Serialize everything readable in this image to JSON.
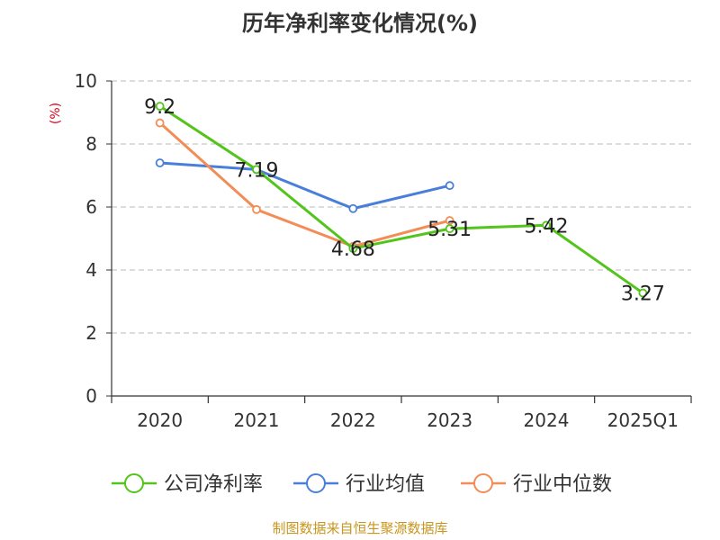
{
  "chart_data": {
    "type": "line",
    "title": "历年净利率变化情况(%)",
    "ylabel": "(%)",
    "xlabel": "",
    "categories": [
      "2020",
      "2021",
      "2022",
      "2023",
      "2024",
      "2025Q1"
    ],
    "ylim": [
      0,
      10
    ],
    "yticks": [
      0,
      2,
      4,
      6,
      8,
      10
    ],
    "grid": true,
    "legend_position": "bottom",
    "series": [
      {
        "name": "公司净利率",
        "color": "#52c41a",
        "values": [
          9.2,
          7.19,
          4.68,
          5.31,
          5.42,
          3.27
        ],
        "labels": [
          "9.2",
          "7.19",
          "4.68",
          "5.31",
          "5.42",
          "3.27"
        ]
      },
      {
        "name": "行业均值",
        "color": "#4a7fd9",
        "values": [
          7.4,
          7.19,
          5.95,
          6.68,
          null,
          null
        ],
        "labels": []
      },
      {
        "name": "行业中位数",
        "color": "#f28d57",
        "values": [
          8.67,
          5.92,
          4.75,
          5.57,
          null,
          null
        ],
        "labels": []
      }
    ]
  },
  "footer": {
    "source": "制图数据来自恒生聚源数据库"
  }
}
